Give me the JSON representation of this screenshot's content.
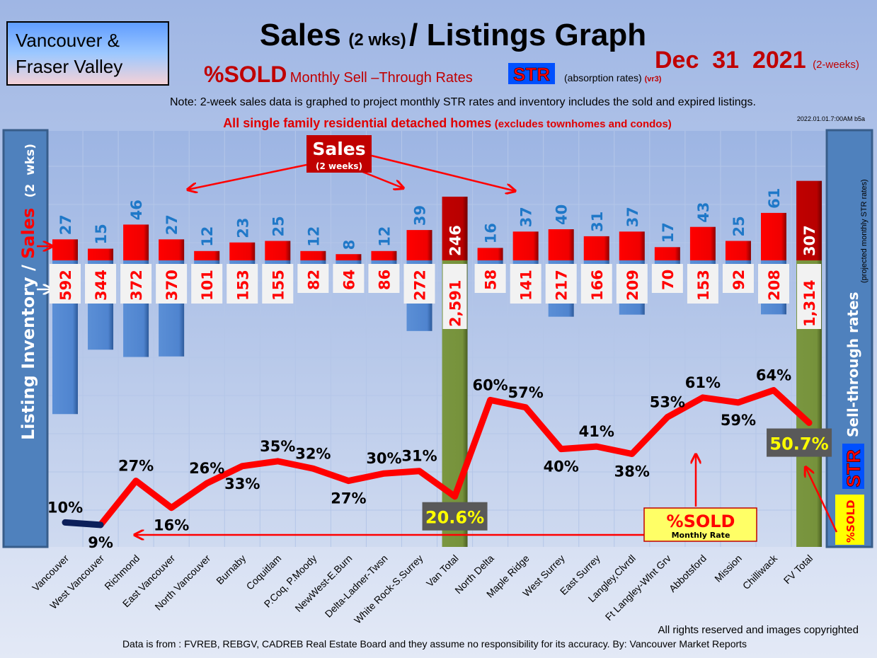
{
  "header": {
    "region_line1": "Vancouver &",
    "region_line2": "Fraser Valley",
    "title_main1": "Sales",
    "title_small": "(2 wks)",
    "title_main2": "/ Listings Graph",
    "date": "Dec  31  2021",
    "date_note": "(2-weeks)",
    "subtitle_sold": "%SOLD",
    "subtitle_rest": "Monthly Sell –Through Rates",
    "str_badge": "STR",
    "absorption": "(absorption rates)",
    "version": "(vr3)",
    "note": "Note: 2-week sales data is graphed to project monthly STR rates and inventory includes the sold and expired listings.",
    "scope": "All single family residential detached homes",
    "scope_note": "(excludes townhomes and condos)",
    "timestamp": "2022.01.01.7:00AM b5a"
  },
  "colors": {
    "sales": "#ff0000",
    "inventory": "#5b8fd6",
    "total": "#77933c",
    "line": "#ff0000",
    "axis_panel": "#4f81bd"
  },
  "chart_data": {
    "type": "bar+line",
    "title": "Sales (2 wks)/ Listings Graph",
    "left_axis_label": {
      "a": "Listing Inventory / ",
      "b": "Sales",
      "c": " (2  wks)"
    },
    "right_axis_label": {
      "a": "Sell-through rates",
      "b": "(projected monthly STR rates)",
      "str": "STR",
      "sold": "%SOLD"
    },
    "categories": [
      "Vancouver",
      "West Vancouver",
      "Richmond",
      "East Vancouver",
      "North Vancouver",
      "Burnaby",
      "Coquitlam",
      "P.Coq, P.Moody",
      "NewWest-E.Burn",
      "Delta-Ladner-Twsn",
      "White Rock-S.Surrey",
      "Van Total",
      "North Delta",
      "Maple Ridge",
      "West Surrey",
      "East Surrey",
      "Langley,Clvrdl",
      "Ft Langley-Wlnt Grv",
      "Abbotsford",
      "Mission",
      "Chilliwack",
      "FV Total"
    ],
    "series": [
      {
        "name": "Sales (2 weeks)",
        "values": [
          27,
          15,
          46,
          27,
          12,
          23,
          25,
          12,
          8,
          12,
          39,
          246,
          16,
          37,
          40,
          31,
          37,
          17,
          43,
          25,
          61,
          307
        ]
      },
      {
        "name": "Listing Inventory",
        "values": [
          592,
          344,
          372,
          370,
          101,
          153,
          155,
          82,
          64,
          86,
          272,
          2591,
          58,
          141,
          217,
          166,
          209,
          70,
          153,
          92,
          208,
          1314
        ]
      },
      {
        "name": "%SOLD Monthly Sell-Through Rate",
        "values": [
          10,
          9,
          27,
          16,
          26,
          33,
          35,
          32,
          27,
          30,
          31,
          20.6,
          60,
          57,
          40,
          41,
          38,
          53,
          61,
          59,
          64,
          50.7
        ]
      }
    ],
    "inventory_labels": [
      "592",
      "344",
      "372",
      "370",
      "101",
      "153",
      "155",
      "82",
      "64",
      "86",
      "272",
      "2,591",
      "58",
      "141",
      "217",
      "166",
      "209",
      "70",
      "153",
      "92",
      "208",
      "1,314"
    ],
    "str_labels": [
      "10%",
      "9%",
      "27%",
      "16%",
      "26%",
      "33%",
      "35%",
      "32%",
      "27%",
      "30%",
      "31%",
      "20.6%",
      "60%",
      "57%",
      "40%",
      "41%",
      "38%",
      "53%",
      "61%",
      "59%",
      "64%",
      "50.7%"
    ],
    "totals": [
      "Van Total",
      "FV Total"
    ],
    "annotations": {
      "sales_box": "Sales",
      "sales_box_sub": "(2 weeks)",
      "sold_box": "%SOLD",
      "sold_box_sub": "Monthly Rate"
    }
  },
  "footer": {
    "rights": "All rights reserved and  images copyrighted",
    "source": "Data is from : FVREB, REBGV, CADREB Real Estate Board and they assume no responsibility for its accuracy. By: Vancouver Market Reports"
  }
}
